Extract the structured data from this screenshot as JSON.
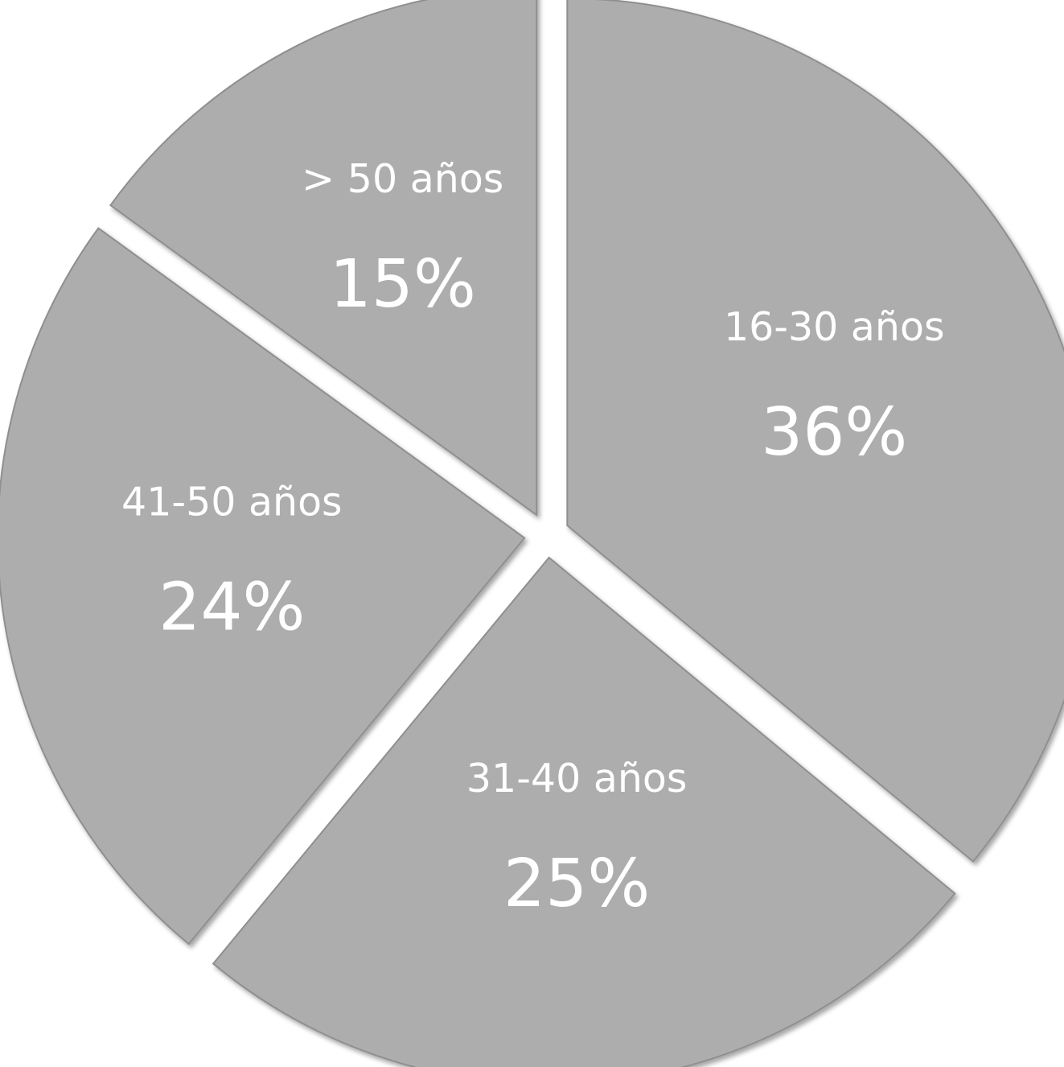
{
  "chart_data": {
    "type": "pie",
    "title": "",
    "categories": [
      "16-30 años",
      "31-40 años",
      "41-50 años",
      "> 50 años"
    ],
    "values": [
      36,
      25,
      24,
      15
    ],
    "value_labels": [
      "36%",
      "25%",
      "24%",
      "15%"
    ],
    "legend": "none",
    "exploded": true,
    "colors": {
      "slice_fill": "#adadad",
      "slice_edge": "#8f8f8f",
      "text": "#ffffff"
    }
  }
}
